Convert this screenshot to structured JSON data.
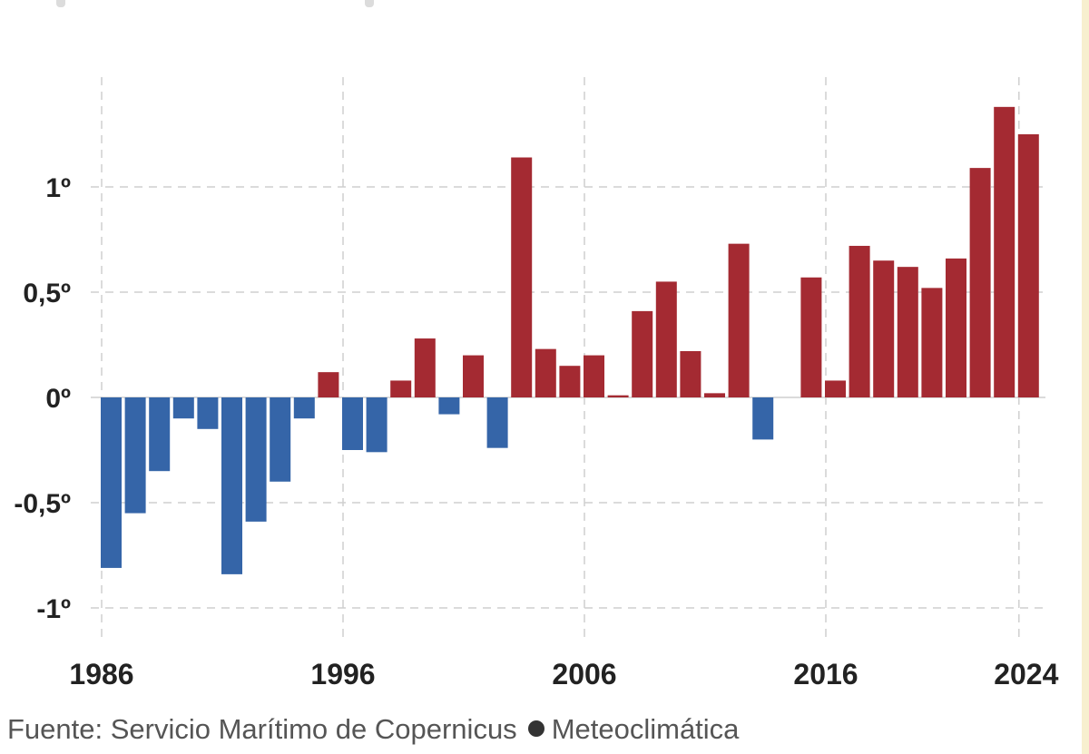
{
  "chart_data": {
    "type": "bar",
    "categories": [
      "1986",
      "1987",
      "1988",
      "1989",
      "1990",
      "1991",
      "1992",
      "1993",
      "1994",
      "1995",
      "1996",
      "1997",
      "1998",
      "1999",
      "2000",
      "2001",
      "2002",
      "2003",
      "2004",
      "2005",
      "2006",
      "2007",
      "2008",
      "2009",
      "2010",
      "2011",
      "2012",
      "2013",
      "2014",
      "2015",
      "2016",
      "2017",
      "2018",
      "2019",
      "2020",
      "2021",
      "2022",
      "2023",
      "2024"
    ],
    "values": [
      -0.81,
      -0.55,
      -0.35,
      -0.1,
      -0.15,
      -0.84,
      -0.59,
      -0.4,
      -0.1,
      0.12,
      -0.25,
      -0.26,
      0.08,
      0.28,
      -0.08,
      0.2,
      -0.24,
      1.14,
      0.23,
      0.15,
      0.2,
      0.01,
      0.41,
      0.55,
      0.22,
      0.02,
      0.73,
      -0.2,
      0.0,
      0.57,
      0.08,
      0.72,
      0.65,
      0.62,
      0.52,
      0.66,
      1.09,
      1.38,
      1.25
    ],
    "positive_color": "#a42a32",
    "negative_color": "#3565a8",
    "ylim": [
      -1.2,
      1.5
    ],
    "y_ticks": [
      {
        "value": 1,
        "label": "1º"
      },
      {
        "value": 0.5,
        "label": "0,5º"
      },
      {
        "value": 0,
        "label": "0º"
      },
      {
        "value": -0.5,
        "label": "-0,5º"
      },
      {
        "value": -1,
        "label": "-1º"
      }
    ],
    "x_ticks": [
      "1986",
      "1996",
      "2006",
      "2016",
      "2024"
    ],
    "grid": true
  },
  "source": {
    "label": "Fuente: Servicio Marítimo de Copernicus",
    "brand": "Meteoclimática"
  }
}
